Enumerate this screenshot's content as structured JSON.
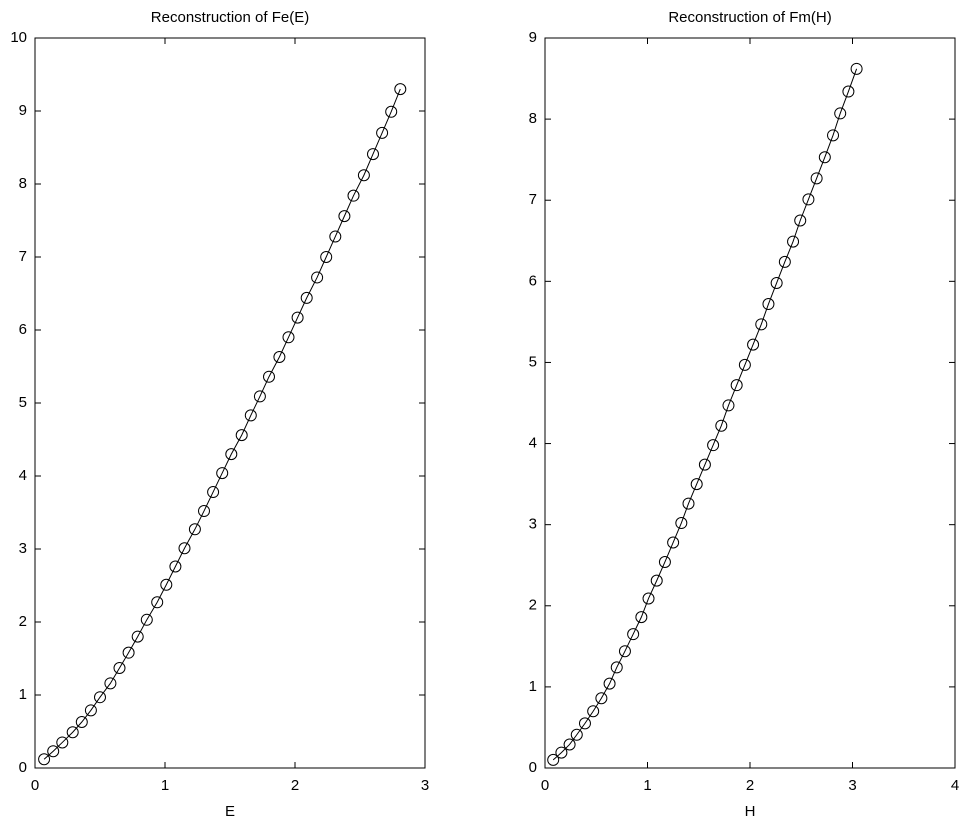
{
  "chart_data": [
    {
      "type": "line",
      "title": "Reconstruction of Fe(E)",
      "x_label": "E",
      "x": [
        0.07,
        0.14,
        0.21,
        0.29,
        0.36,
        0.43,
        0.5,
        0.58,
        0.65,
        0.72,
        0.79,
        0.86,
        0.94,
        1.01,
        1.08,
        1.15,
        1.23,
        1.3,
        1.37,
        1.44,
        1.51,
        1.59,
        1.66,
        1.73,
        1.8,
        1.88,
        1.95,
        2.02,
        2.09,
        2.17,
        2.24,
        2.31,
        2.38,
        2.45,
        2.53,
        2.6,
        2.67,
        2.74,
        2.81
      ],
      "values": [
        0.12,
        0.23,
        0.35,
        0.49,
        0.63,
        0.79,
        0.97,
        1.16,
        1.37,
        1.58,
        1.8,
        2.03,
        2.27,
        2.51,
        2.76,
        3.01,
        3.27,
        3.52,
        3.78,
        4.04,
        4.3,
        4.56,
        4.83,
        5.09,
        5.36,
        5.63,
        5.9,
        6.17,
        6.44,
        6.72,
        7.0,
        7.28,
        7.56,
        7.84,
        8.12,
        8.41,
        8.7,
        8.99,
        9.3
      ],
      "color": "#000000",
      "marker": "circle",
      "xlim": [
        0,
        3
      ],
      "xticks": [
        0,
        1,
        2,
        3
      ],
      "ylim": [
        0,
        10
      ],
      "yticks": [
        0,
        1,
        2,
        3,
        4,
        5,
        6,
        7,
        8,
        9,
        10
      ]
    },
    {
      "type": "line",
      "title": "Reconstruction of Fm(H)",
      "x_label": "H",
      "x": [
        0.08,
        0.16,
        0.24,
        0.31,
        0.39,
        0.47,
        0.55,
        0.63,
        0.7,
        0.78,
        0.86,
        0.94,
        1.01,
        1.09,
        1.17,
        1.25,
        1.33,
        1.4,
        1.48,
        1.56,
        1.64,
        1.72,
        1.79,
        1.87,
        1.95,
        2.03,
        2.11,
        2.18,
        2.26,
        2.34,
        2.42,
        2.49,
        2.57,
        2.65,
        2.73,
        2.81,
        2.88,
        2.96,
        3.04
      ],
      "values": [
        0.1,
        0.19,
        0.29,
        0.41,
        0.55,
        0.7,
        0.86,
        1.04,
        1.24,
        1.44,
        1.65,
        1.86,
        2.09,
        2.31,
        2.54,
        2.78,
        3.02,
        3.26,
        3.5,
        3.74,
        3.98,
        4.22,
        4.47,
        4.72,
        4.97,
        5.22,
        5.47,
        5.72,
        5.98,
        6.24,
        6.49,
        6.75,
        7.01,
        7.27,
        7.53,
        7.8,
        8.07,
        8.34,
        8.62
      ],
      "color": "#000000",
      "marker": "circle",
      "xlim": [
        0,
        4
      ],
      "xticks": [
        0,
        1,
        2,
        3,
        4
      ],
      "ylim": [
        0,
        9
      ],
      "yticks": [
        0,
        1,
        2,
        3,
        4,
        5,
        6,
        7,
        8,
        9
      ]
    }
  ]
}
